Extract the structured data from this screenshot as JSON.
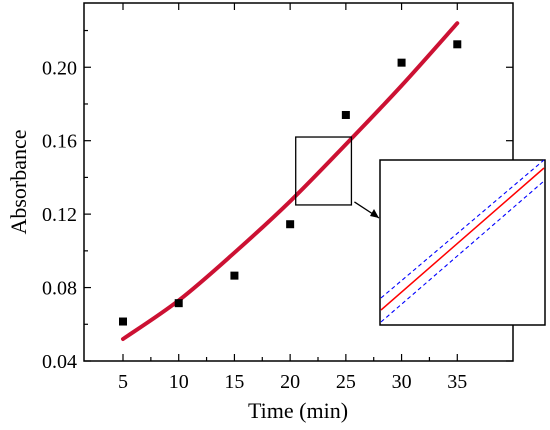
{
  "chart_data": {
    "type": "scatter",
    "xlabel": "Time (min)",
    "ylabel": "Absorbance",
    "xlim": [
      1.5,
      40
    ],
    "ylim": [
      0.04,
      0.235
    ],
    "x_ticks": [
      5,
      10,
      15,
      20,
      25,
      30,
      35
    ],
    "x_tick_labels": [
      "5",
      "10",
      "15",
      "20",
      "25",
      "30",
      "35"
    ],
    "y_ticks": [
      0.04,
      0.08,
      0.12,
      0.16,
      0.2
    ],
    "y_tick_labels": [
      "0.04",
      "0.08",
      "0.12",
      "0.16",
      "0.20"
    ],
    "grid": false,
    "series": [
      {
        "kind": "points",
        "marker": "square",
        "color": "#000000",
        "x": [
          5,
          10,
          15,
          20,
          25,
          30,
          35
        ],
        "y": [
          0.0615,
          0.0715,
          0.0865,
          0.1145,
          0.174,
          0.2025,
          0.2125
        ]
      },
      {
        "kind": "fit-line",
        "color": "#cc1133",
        "x": [
          5,
          10,
          15,
          20,
          25,
          30,
          35
        ],
        "y": [
          0.052,
          0.073,
          0.099,
          0.127,
          0.158,
          0.19,
          0.224
        ]
      }
    ],
    "inset": {
      "zoom_region": {
        "x": [
          20.5,
          25.5
        ],
        "y": [
          0.125,
          0.162
        ]
      },
      "center_line_color": "#ff0000",
      "band_color": "#0000ff"
    }
  }
}
